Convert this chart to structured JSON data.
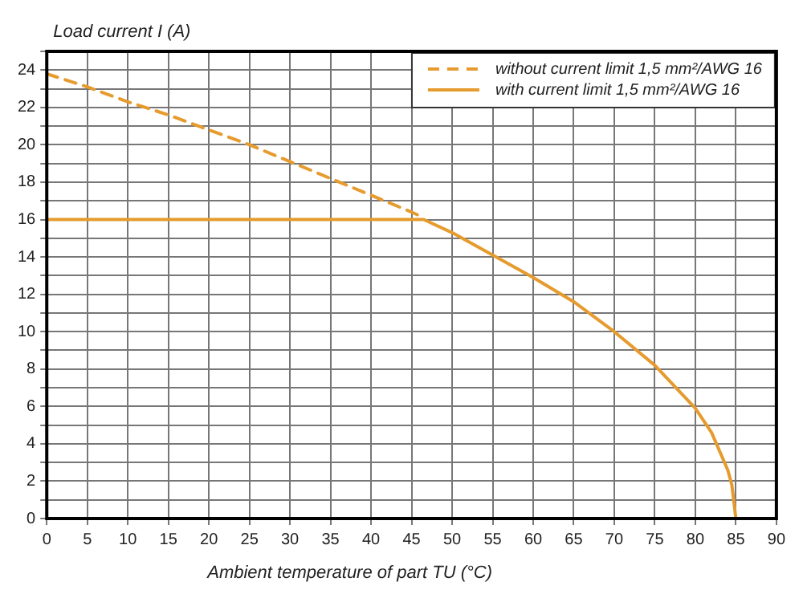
{
  "chart_data": {
    "type": "line",
    "xlabel": "Ambient temperature of part TU (°C)",
    "ylabel": "Load current I (A)",
    "xlim": [
      0,
      90
    ],
    "xticks": [
      0,
      5,
      10,
      15,
      20,
      25,
      30,
      35,
      40,
      45,
      50,
      55,
      60,
      65,
      70,
      75,
      80,
      85,
      90
    ],
    "ylim": [
      0,
      25
    ],
    "yticks": [
      0,
      {
        "value": 1,
        "label": null
      },
      2,
      {
        "value": 3,
        "label": null
      },
      4,
      {
        "value": 5,
        "label": null
      },
      6,
      {
        "value": 7,
        "label": null
      },
      8,
      {
        "value": 9,
        "label": null
      },
      10,
      {
        "value": 11,
        "label": null
      },
      12,
      {
        "value": 13,
        "label": null
      },
      14,
      {
        "value": 15,
        "label": null
      },
      16,
      {
        "value": 17,
        "label": null
      },
      18,
      {
        "value": 19,
        "label": null
      },
      20,
      {
        "value": 21,
        "label": null
      },
      22,
      {
        "value": 23,
        "label": null
      },
      24,
      {
        "value": 25,
        "label": null
      }
    ],
    "grid": true,
    "legend": "top right",
    "marker": "none",
    "series": [
      {
        "name": "without current limit 1,5 mm²/AWG 16",
        "color": "#e69b2e",
        "line_style": "dashed",
        "x": [
          0,
          5,
          10,
          15,
          20,
          25,
          30,
          35,
          40,
          45,
          46.5
        ],
        "values": [
          23.8,
          23.1,
          22.3,
          21.6,
          20.8,
          20.0,
          19.1,
          18.2,
          17.3,
          16.4,
          16.1
        ]
      },
      {
        "name": "with current limit 1,5 mm²/AWG 16",
        "color": "#e69b2e",
        "line_style": "solid",
        "x": [
          0,
          46.5,
          50,
          55,
          60,
          65,
          70,
          75,
          80,
          82,
          84,
          84.5,
          85
        ],
        "values": [
          16,
          16,
          15.3,
          14.1,
          12.9,
          11.6,
          10.0,
          8.2,
          5.9,
          4.6,
          2.6,
          1.8,
          0
        ]
      }
    ]
  }
}
